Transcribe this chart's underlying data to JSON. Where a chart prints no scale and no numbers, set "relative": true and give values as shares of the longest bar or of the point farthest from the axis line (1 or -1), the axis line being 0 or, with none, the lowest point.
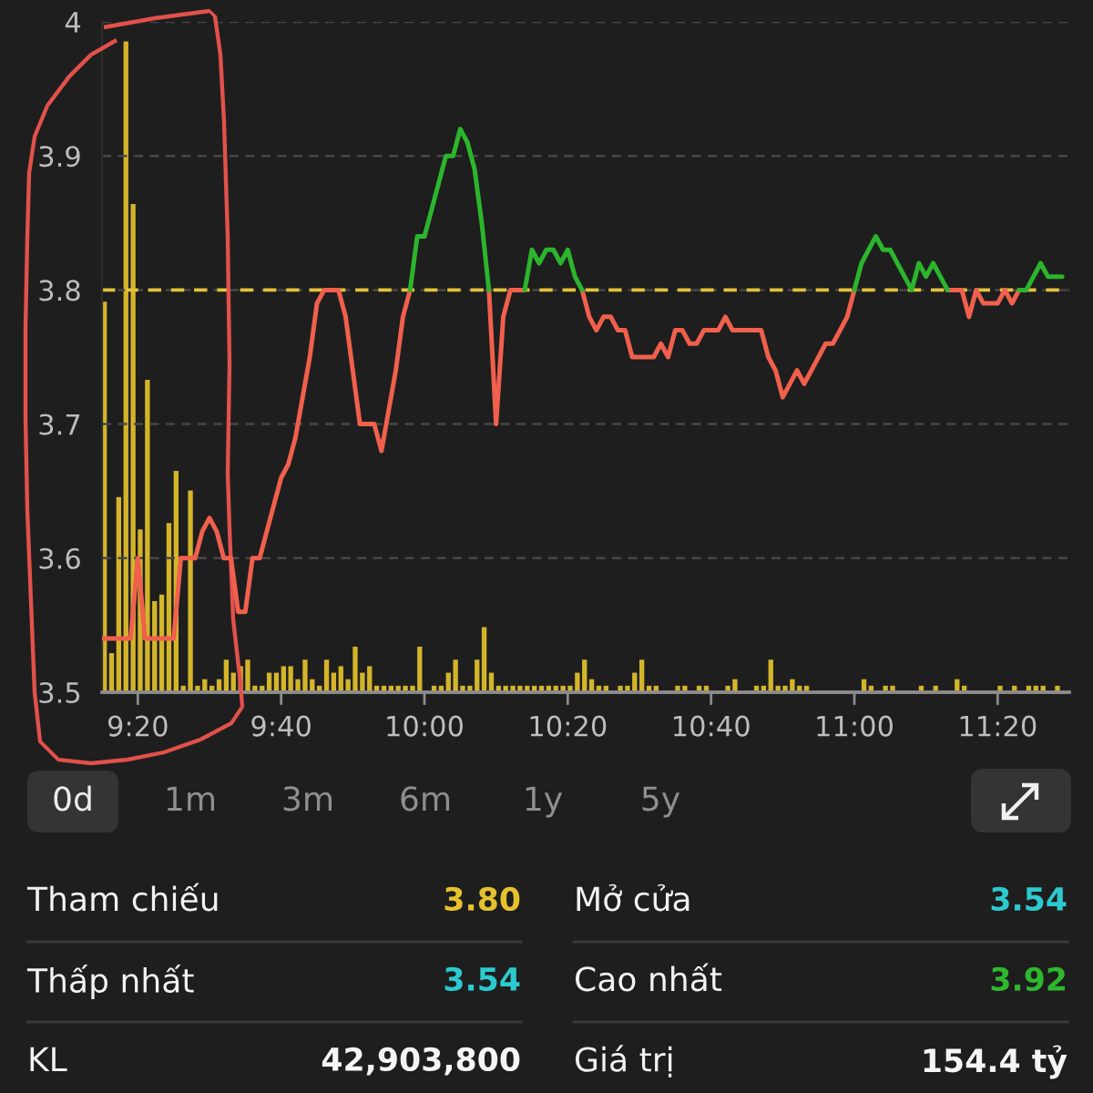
{
  "chart_data": [
    {
      "type": "line",
      "x": [
        9.25,
        9.2667,
        9.2833,
        9.3,
        9.3167,
        9.3333,
        9.35,
        9.3667,
        9.3833,
        9.4,
        9.4167,
        9.4333,
        9.45,
        9.4667,
        9.4833,
        9.5,
        9.5167,
        9.5333,
        9.55,
        9.5667,
        9.5833,
        9.6,
        9.6167,
        9.6333,
        9.65,
        9.6667,
        9.6833,
        9.7,
        9.7167,
        9.7333,
        9.75,
        9.7667,
        9.7833,
        9.8,
        9.8167,
        9.8333,
        9.85,
        9.8667,
        9.8833,
        9.9,
        9.9167,
        9.9333,
        9.95,
        9.9667,
        9.9833,
        10,
        10.0167,
        10.0333,
        10.05,
        10.0667,
        10.0833,
        10.1,
        10.1167,
        10.1333,
        10.15,
        10.1667,
        10.1833,
        10.2,
        10.2167,
        10.2333,
        10.25,
        10.2667,
        10.2833,
        10.3,
        10.3167,
        10.3333,
        10.35,
        10.3667,
        10.3833,
        10.4,
        10.4167,
        10.4333,
        10.45,
        10.4667,
        10.4833,
        10.5,
        10.5167,
        10.5333,
        10.55,
        10.5667,
        10.5833,
        10.6,
        10.6167,
        10.6333,
        10.65,
        10.6667,
        10.6833,
        10.7,
        10.7167,
        10.7333,
        10.75,
        10.7667,
        10.7833,
        10.8,
        10.8167,
        10.8333,
        10.85,
        10.8667,
        10.8833,
        10.9,
        10.9167,
        10.9333,
        10.95,
        10.9667,
        10.9833,
        11,
        11.0167,
        11.0333,
        11.05,
        11.0667,
        11.0833,
        11.1,
        11.1167,
        11.1333,
        11.15,
        11.1667,
        11.1833,
        11.2,
        11.2167,
        11.2333,
        11.25,
        11.2667,
        11.2833,
        11.3,
        11.3167,
        11.3333,
        11.35,
        11.3667,
        11.3833,
        11.4,
        11.4167,
        11.4333,
        11.45,
        11.4667,
        11.4833
      ],
      "series": [
        {
          "color": "#f0604d",
          "values": [
            3.54,
            3.54,
            3.54,
            3.54,
            3.54,
            3.6,
            3.54,
            3.54,
            3.54,
            3.54,
            3.54,
            3.6,
            3.6,
            3.6,
            3.62,
            3.63,
            3.62,
            3.6,
            3.6,
            3.56,
            3.56,
            3.6,
            3.6,
            3.62,
            3.64,
            3.66,
            3.67,
            3.69,
            3.72,
            3.75,
            3.79,
            3.8,
            3.8,
            3.8,
            3.78,
            3.74,
            3.7,
            3.7,
            3.7,
            3.68,
            3.71,
            3.74,
            3.78,
            3.8,
            null,
            null,
            null,
            null,
            null,
            null,
            null,
            null,
            null,
            null,
            3.8,
            3.7,
            3.78,
            3.8,
            3.8,
            3.8,
            null,
            null,
            null,
            null,
            null,
            null,
            null,
            3.8,
            3.78,
            3.77,
            3.78,
            3.78,
            3.77,
            3.77,
            3.75,
            3.75,
            3.75,
            3.75,
            3.76,
            3.75,
            3.77,
            3.77,
            3.76,
            3.76,
            3.77,
            3.77,
            3.77,
            3.78,
            3.77,
            3.77,
            3.77,
            3.77,
            3.77,
            3.75,
            3.74,
            3.72,
            3.73,
            3.74,
            3.73,
            3.74,
            3.75,
            3.76,
            3.76,
            3.77,
            3.78,
            3.8,
            null,
            null,
            null,
            null,
            null,
            null,
            null,
            null,
            null,
            null,
            null,
            null,
            3.8,
            3.8,
            3.8,
            3.78,
            3.8,
            3.79,
            3.79,
            3.79,
            3.8,
            3.79,
            3.8,
            null,
            null,
            null,
            null,
            null,
            null
          ]
        },
        {
          "color": "#2cb52c",
          "values": [
            null,
            null,
            null,
            null,
            null,
            null,
            null,
            null,
            null,
            null,
            null,
            null,
            null,
            null,
            null,
            null,
            null,
            null,
            null,
            null,
            null,
            null,
            null,
            null,
            null,
            null,
            null,
            null,
            null,
            null,
            null,
            null,
            null,
            null,
            null,
            null,
            null,
            null,
            null,
            null,
            null,
            null,
            null,
            3.8,
            3.84,
            3.84,
            3.86,
            3.88,
            3.9,
            3.9,
            3.92,
            3.91,
            3.89,
            3.85,
            3.8,
            null,
            null,
            null,
            null,
            3.8,
            3.83,
            3.82,
            3.83,
            3.83,
            3.82,
            3.83,
            3.81,
            3.8,
            null,
            null,
            null,
            null,
            null,
            null,
            null,
            null,
            null,
            null,
            null,
            null,
            null,
            null,
            null,
            null,
            null,
            null,
            null,
            null,
            null,
            null,
            null,
            null,
            null,
            null,
            null,
            null,
            null,
            null,
            null,
            null,
            null,
            null,
            null,
            null,
            null,
            3.8,
            3.82,
            3.83,
            3.84,
            3.83,
            3.83,
            3.82,
            3.81,
            3.8,
            3.82,
            3.81,
            3.82,
            3.81,
            3.8,
            null,
            null,
            null,
            null,
            null,
            null,
            null,
            null,
            null,
            3.8,
            3.8,
            3.81,
            3.82,
            3.81,
            3.81,
            3.81
          ]
        }
      ],
      "xlim": [
        9.25,
        11.5
      ],
      "xticks": [
        {
          "value": 9.3333,
          "label": "9:20"
        },
        {
          "value": 9.6667,
          "label": "9:40"
        },
        {
          "value": 10,
          "label": "10:00"
        },
        {
          "value": 10.3333,
          "label": "10:20"
        },
        {
          "value": 10.6667,
          "label": "10:40"
        },
        {
          "value": 11,
          "label": "11:00"
        },
        {
          "value": 11.3333,
          "label": "11:20"
        }
      ],
      "ylim": [
        3.5,
        4
      ],
      "yticks": [
        3.5,
        3.6,
        3.7,
        3.8,
        3.9,
        4
      ],
      "grid": "y",
      "ref_lines": [
        {
          "axis": "y",
          "value": 3.8,
          "color": "#e3c23b",
          "line_style": "dashed"
        }
      ]
    },
    {
      "type": "bar",
      "relative": true,
      "x": [
        9.25,
        9.2667,
        9.2833,
        9.3,
        9.3167,
        9.3333,
        9.35,
        9.3667,
        9.3833,
        9.4,
        9.4167,
        9.4333,
        9.45,
        9.4667,
        9.4833,
        9.5,
        9.5167,
        9.5333,
        9.55,
        9.5667,
        9.5833,
        9.6,
        9.6167,
        9.6333,
        9.65,
        9.6667,
        9.6833,
        9.7,
        9.7167,
        9.7333,
        9.75,
        9.7667,
        9.7833,
        9.8,
        9.8167,
        9.8333,
        9.85,
        9.8667,
        9.8833,
        9.9,
        9.9167,
        9.9333,
        9.95,
        9.9667,
        9.9833,
        10.0167,
        10.0333,
        10.05,
        10.0667,
        10.0833,
        10.1,
        10.1167,
        10.1333,
        10.15,
        10.1667,
        10.1833,
        10.2,
        10.2167,
        10.2333,
        10.25,
        10.2667,
        10.2833,
        10.3,
        10.3167,
        10.3333,
        10.35,
        10.3667,
        10.3833,
        10.4,
        10.4167,
        10.45,
        10.4667,
        10.4833,
        10.5,
        10.5167,
        10.5333,
        10.5833,
        10.6,
        10.6333,
        10.65,
        10.7,
        10.7167,
        10.7667,
        10.7833,
        10.8,
        10.8167,
        10.8333,
        10.85,
        10.8667,
        10.8833,
        11.0167,
        11.0333,
        11.0667,
        11.0833,
        11.15,
        11.1833,
        11.2333,
        11.25,
        11.3333,
        11.3667,
        11.4,
        11.4167,
        11.4333,
        11.4667
      ],
      "values": [
        0.6,
        0.06,
        0.3,
        1,
        0.75,
        0.25,
        0.48,
        0.14,
        0.15,
        0.26,
        0.34,
        0.01,
        0.31,
        0.01,
        0.02,
        0.01,
        0.02,
        0.05,
        0.03,
        0.04,
        0.05,
        0.01,
        0.01,
        0.03,
        0.03,
        0.04,
        0.04,
        0.02,
        0.05,
        0.02,
        0.01,
        0.05,
        0.03,
        0.04,
        0.02,
        0.07,
        0.03,
        0.04,
        0.01,
        0.01,
        0.01,
        0.01,
        0.01,
        0.01,
        0.07,
        0.01,
        0.01,
        0.03,
        0.05,
        0.01,
        0.01,
        0.05,
        0.1,
        0.03,
        0.01,
        0.01,
        0.01,
        0.01,
        0.01,
        0.01,
        0.01,
        0.01,
        0.01,
        0.01,
        0.01,
        0.03,
        0.05,
        0.02,
        0.01,
        0.01,
        0.01,
        0.01,
        0.03,
        0.05,
        0.01,
        0.01,
        0.01,
        0.01,
        0.01,
        0.01,
        0.01,
        0.02,
        0.01,
        0.01,
        0.05,
        0.01,
        0.01,
        0.02,
        0.01,
        0.01,
        0.02,
        0.01,
        0.01,
        0.01,
        0.01,
        0.01,
        0.02,
        0.01,
        0.01,
        0.01,
        0.01,
        0.01,
        0.01,
        0.01
      ],
      "color": "#d4b52a",
      "xlim": [
        9.25,
        11.5
      ],
      "tick_labels": false
    },
    {
      "type": "other",
      "annotations": [
        "0d",
        "1m",
        "3m",
        "6m",
        "1y",
        "5y"
      ],
      "colors": [
        "#ececec",
        "#8f8f8f",
        "#8f8f8f",
        "#8f8f8f",
        "#8f8f8f",
        "#8f8f8f"
      ]
    },
    {
      "type": "other",
      "annotations": [
        "Tham chiếu",
        "3.80",
        "Mở cửa",
        "3.54",
        "Thấp nhất",
        "3.54",
        "Cao nhất",
        "3.92",
        "KL",
        "42,903,800",
        "Giá trị",
        "154.4 tỷ"
      ],
      "colors": [
        "#f2f2f2",
        "#e6c12e",
        "#f2f2f2",
        "#2cc9cf",
        "#f2f2f2",
        "#2cc9cf",
        "#f2f2f2",
        "#2eb82e",
        "#f2f2f2",
        "#f5f5f5",
        "#f2f2f2",
        "#f5f5f5"
      ]
    }
  ]
}
